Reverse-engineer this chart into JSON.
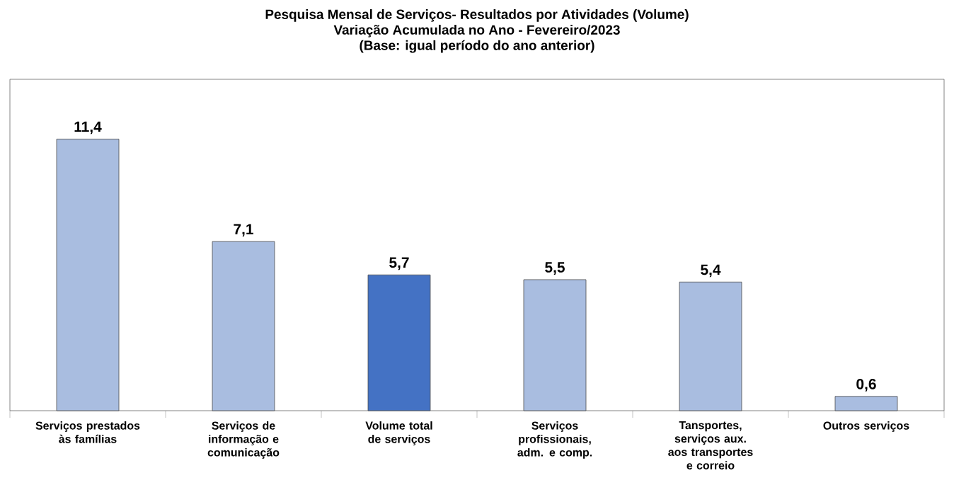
{
  "chart_data": {
    "type": "bar",
    "title": "Pesquisa Mensal de Serviços- Resultados por Atividades (Volume)",
    "subtitle": "Variação Acumulada no Ano - Fevereiro/2023",
    "annotations": [
      "(Base: igual período  do ano anterior)"
    ],
    "categories": [
      "Serviços prestados às famílias",
      "Serviços de informação e comunicação",
      "Volume total de serviços",
      "Serviços profissionais,  adm. e comp.",
      "Tansportes, serviços aux. aos transportes e correio",
      "Outros serviços"
    ],
    "values": [
      11.4,
      7.1,
      5.7,
      5.5,
      5.4,
      0.6
    ],
    "colors": [
      "#a9bde0",
      "#a9bde0",
      "#4472c4",
      "#a9bde0",
      "#a9bde0",
      "#a9bde0"
    ],
    "value_labels": [
      "11,4",
      "7,1",
      "5,7",
      "5,5",
      "5,4",
      "0,6"
    ]
  }
}
